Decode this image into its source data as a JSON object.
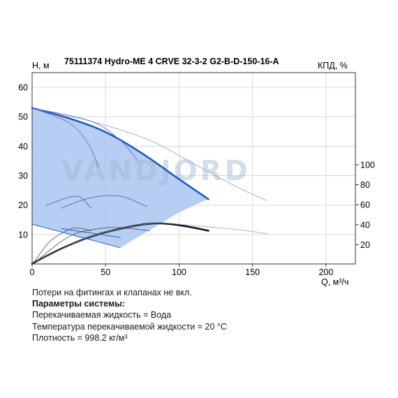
{
  "chart_data": {
    "type": "line",
    "title": "75111374 Hydro-ME 4 CRVE 32-3-2 G2-B-D-150-16-A",
    "ylabel": "H, м",
    "y2label": "КПД, %",
    "xlabel": "Q, м³/ч",
    "xlim": [
      0,
      220
    ],
    "ylim": [
      0,
      65
    ],
    "y2lim": [
      0,
      100
    ],
    "x_ticks": [
      0,
      50,
      100,
      150,
      200
    ],
    "y_ticks": [
      10,
      20,
      30,
      40,
      50,
      60
    ],
    "y2_ticks": [
      20,
      40,
      60,
      80,
      100
    ],
    "watermark": "VANDJORD",
    "colors": {
      "fill": "#a9c6f1",
      "main_curve": "#1d5dba",
      "thin_curve": "#7d9fd8",
      "efficiency": "#111111",
      "minspeed": "#7d6ad0",
      "grid": "#d9d9d9",
      "watermark": "#9fb5cf"
    },
    "operating_area": {
      "upper": [
        [
          0,
          53
        ],
        [
          25,
          49.5
        ],
        [
          50,
          44.8
        ],
        [
          75,
          37.5
        ],
        [
          100,
          28.8
        ],
        [
          120,
          22.2
        ]
      ],
      "lower": [
        [
          120,
          22.2
        ],
        [
          100,
          17.5
        ],
        [
          80,
          11.5
        ],
        [
          60,
          5.5
        ],
        [
          30,
          9.5
        ],
        [
          0,
          13.5
        ]
      ]
    },
    "series": [
      {
        "role": "max_head",
        "style": "thick",
        "points": [
          [
            0,
            53
          ],
          [
            25,
            49.5
          ],
          [
            50,
            44.8
          ],
          [
            75,
            37.5
          ],
          [
            100,
            28.8
          ],
          [
            120,
            22
          ]
        ]
      },
      {
        "role": "max_head_extended",
        "style": "thin-dotted",
        "points": [
          [
            0,
            53
          ],
          [
            40,
            48.5
          ],
          [
            80,
            42
          ],
          [
            110,
            34
          ],
          [
            140,
            26
          ],
          [
            160,
            21.5
          ]
        ]
      },
      {
        "role": "efficiency",
        "style": "thick-black",
        "axis": "y2",
        "points": [
          [
            0,
            1
          ],
          [
            20,
            16
          ],
          [
            40,
            28
          ],
          [
            60,
            36
          ],
          [
            80,
            41
          ],
          [
            95,
            40.5
          ],
          [
            110,
            37
          ],
          [
            120,
            34
          ]
        ]
      },
      {
        "role": "efficiency_extended",
        "style": "thin-dotted",
        "axis": "y2",
        "points": [
          [
            0,
            1
          ],
          [
            40,
            28
          ],
          [
            80,
            41
          ],
          [
            110,
            39
          ],
          [
            140,
            35
          ],
          [
            160,
            31
          ]
        ]
      },
      {
        "role": "low_speed_efficiency_1",
        "style": "thin-black",
        "axis": "y2",
        "points": [
          [
            0,
            0
          ],
          [
            12,
            23
          ],
          [
            25,
            35
          ],
          [
            32,
            36.5
          ],
          [
            40,
            34
          ]
        ]
      },
      {
        "role": "low_speed_efficiency_2",
        "style": "thin-black",
        "axis": "y2",
        "points": [
          [
            0,
            0
          ],
          [
            25,
            28
          ],
          [
            45,
            36
          ],
          [
            60,
            37
          ],
          [
            80,
            34
          ]
        ]
      },
      {
        "role": "min_speed_1",
        "style": "purple",
        "points": [
          [
            0,
            53
          ],
          [
            25,
            48
          ],
          [
            38,
            41
          ],
          [
            45,
            33
          ]
        ]
      },
      {
        "role": "min_speed_2",
        "style": "purple",
        "points": [
          [
            0,
            53
          ],
          [
            40,
            48.5
          ],
          [
            60,
            42
          ],
          [
            72,
            35
          ]
        ]
      },
      {
        "role": "head_line_thin_1",
        "style": "thin-dark",
        "points": [
          [
            10,
            20
          ],
          [
            30,
            23
          ],
          [
            40,
            19
          ]
        ]
      },
      {
        "role": "head_line_thin_2",
        "style": "thin-dark",
        "points": [
          [
            20,
            19
          ],
          [
            40,
            22.5
          ],
          [
            60,
            23
          ],
          [
            78,
            19.5
          ]
        ]
      },
      {
        "role": "low_head_curve",
        "style": "thin-blue",
        "points": [
          [
            0,
            13.5
          ],
          [
            30,
            9.5
          ],
          [
            60,
            5.5
          ]
        ]
      },
      {
        "role": "low_head_curve_2",
        "style": "thin-blue",
        "points": [
          [
            20,
            12
          ],
          [
            40,
            10.5
          ],
          [
            60,
            9
          ]
        ]
      }
    ]
  },
  "notes": {
    "line1": "Потери на фитингах и клапанах не вкл.",
    "heading": "Параметры системы:",
    "line2": "Перекачиваемая жидкость = Вода",
    "line3": "Температура перекачиваемой жидкости = 20 °C",
    "line4": "Плотность = 998.2 кг/м³"
  }
}
